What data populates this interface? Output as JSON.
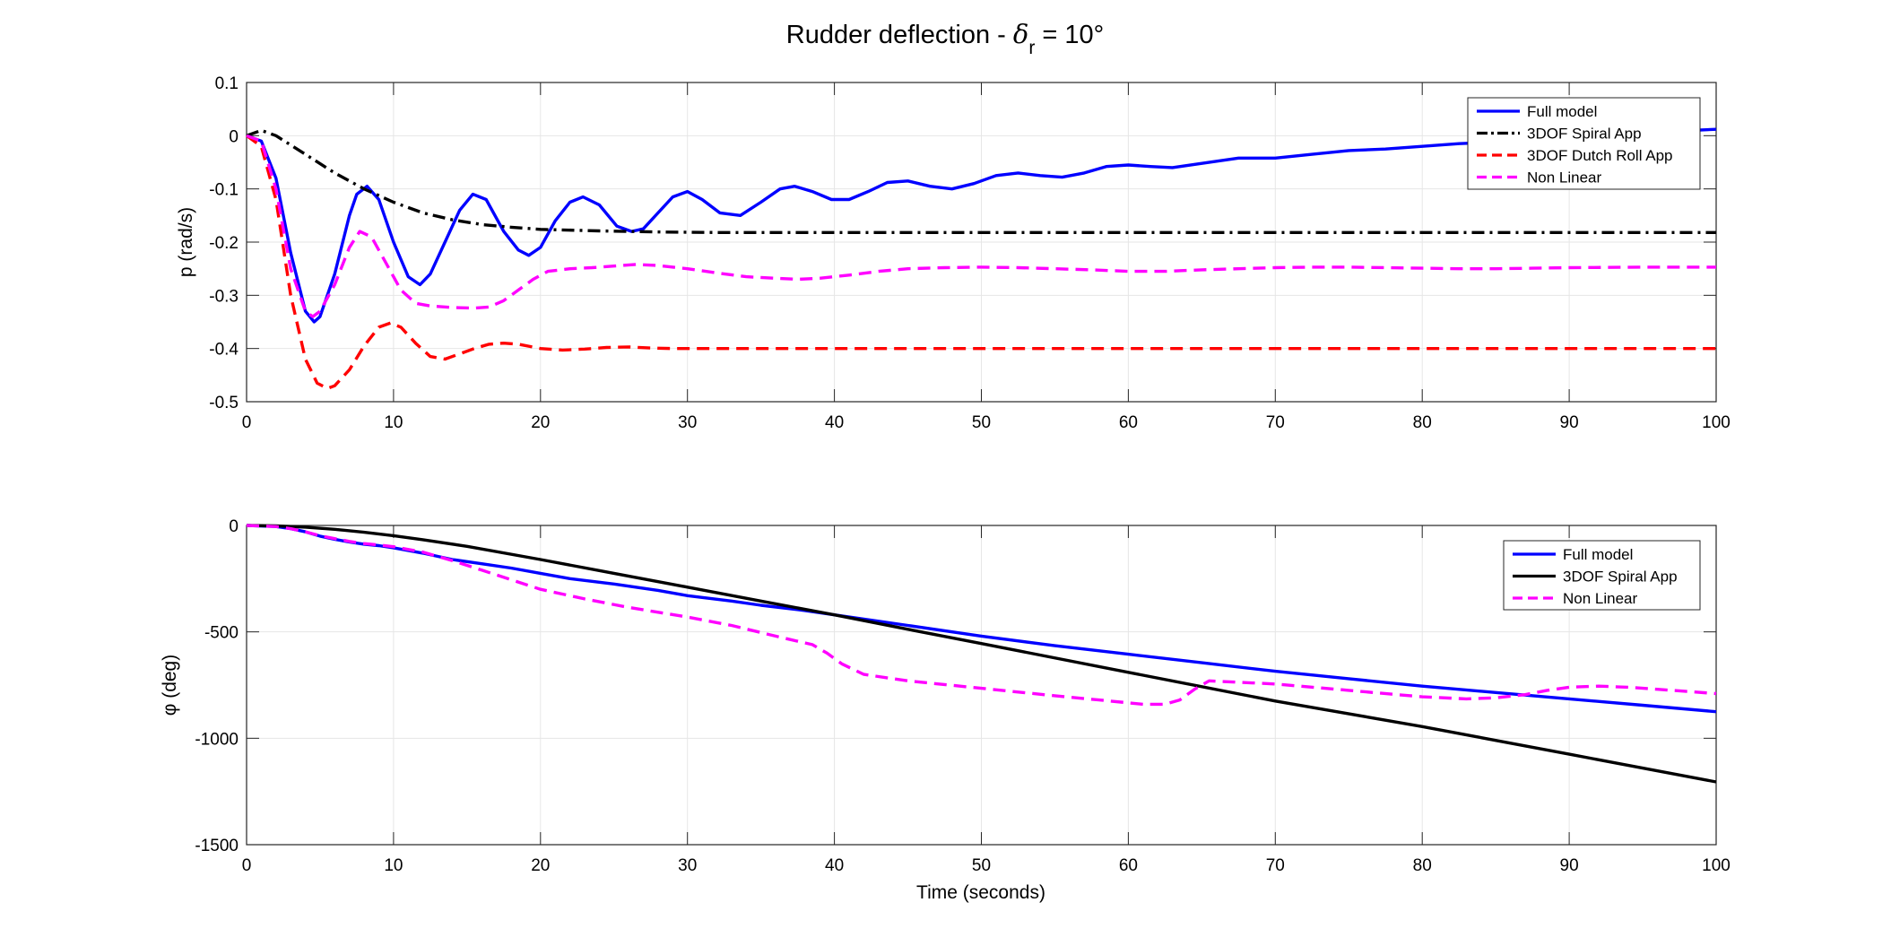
{
  "figure": {
    "title_main": "Rudder deflection - ",
    "title_delta": "δ",
    "title_sub": "r",
    "title_rest": " = 10°",
    "xlabel": "Time (seconds)"
  },
  "colors": {
    "full_model": "#0000ff",
    "spiral": "#000000",
    "dutch_roll": "#ff0000",
    "non_linear": "#ff00ff",
    "grid": "#e6e6e6",
    "axis": "#262626"
  },
  "chart_data": [
    {
      "type": "line",
      "ylabel": "p (rad/s)",
      "xlim": [
        0,
        100
      ],
      "ylim": [
        -0.5,
        0.1
      ],
      "xticks": [
        0,
        10,
        20,
        30,
        40,
        50,
        60,
        70,
        80,
        90,
        100
      ],
      "yticks": [
        0.1,
        0,
        -0.1,
        -0.2,
        -0.3,
        -0.4,
        -0.5
      ],
      "ytick_labels": [
        "0.1",
        "0",
        "-0.1",
        "-0.2",
        "-0.3",
        "-0.4",
        "-0.5"
      ],
      "grid": true,
      "legend": "top-right",
      "series": [
        {
          "name": "Full model",
          "color": "#0000ff",
          "dash": "solid",
          "x": [
            0,
            1,
            2,
            3,
            4,
            4.6,
            5,
            6,
            7,
            7.5,
            8.2,
            9,
            10,
            11,
            11.8,
            12.5,
            13.5,
            14.5,
            15.4,
            16.3,
            17.5,
            18.5,
            19.2,
            20,
            21,
            22,
            22.9,
            24,
            25.2,
            26.2,
            27,
            28,
            29,
            30,
            31,
            32.2,
            33.6,
            35,
            36.3,
            37.3,
            38.5,
            39.8,
            41,
            42.3,
            43.6,
            45,
            46.5,
            48,
            49.5,
            51,
            52.5,
            54,
            55.5,
            57,
            58.5,
            60,
            61.5,
            63,
            65,
            67.5,
            70,
            72.5,
            75,
            77.5,
            80,
            82.5,
            85,
            87.5,
            90,
            92.5,
            95,
            97.5,
            100
          ],
          "y": [
            0,
            -0.01,
            -0.08,
            -0.22,
            -0.33,
            -0.35,
            -0.34,
            -0.26,
            -0.15,
            -0.11,
            -0.095,
            -0.12,
            -0.2,
            -0.265,
            -0.28,
            -0.26,
            -0.2,
            -0.14,
            -0.11,
            -0.12,
            -0.18,
            -0.215,
            -0.225,
            -0.21,
            -0.16,
            -0.125,
            -0.115,
            -0.13,
            -0.17,
            -0.18,
            -0.175,
            -0.145,
            -0.115,
            -0.105,
            -0.12,
            -0.145,
            -0.15,
            -0.125,
            -0.1,
            -0.095,
            -0.105,
            -0.12,
            -0.12,
            -0.105,
            -0.088,
            -0.085,
            -0.095,
            -0.1,
            -0.09,
            -0.075,
            -0.07,
            -0.075,
            -0.078,
            -0.07,
            -0.058,
            -0.055,
            -0.058,
            -0.06,
            -0.052,
            -0.042,
            -0.042,
            -0.035,
            -0.028,
            -0.025,
            -0.02,
            -0.015,
            -0.012,
            -0.01,
            -0.006,
            -0.002,
            0.004,
            0.009,
            0.012
          ]
        },
        {
          "name": "3DOF Spiral App",
          "color": "#000000",
          "dash": "dashdot",
          "x": [
            0,
            1,
            2,
            4,
            6,
            8,
            10,
            12,
            14,
            16,
            18,
            20,
            24,
            28,
            32,
            40,
            50,
            60,
            70,
            80,
            90,
            100
          ],
          "y": [
            0,
            0.01,
            0.0,
            -0.035,
            -0.07,
            -0.1,
            -0.125,
            -0.145,
            -0.158,
            -0.167,
            -0.172,
            -0.176,
            -0.179,
            -0.181,
            -0.182,
            -0.182,
            -0.182,
            -0.182,
            -0.182,
            -0.182,
            -0.182,
            -0.182
          ]
        },
        {
          "name": "3DOF Dutch Roll App",
          "color": "#ff0000",
          "dash": "dashed",
          "x": [
            0,
            1,
            2,
            3,
            4,
            4.8,
            5.5,
            6,
            7,
            8,
            9,
            9.8,
            10.5,
            11.5,
            12.5,
            13.5,
            14.5,
            15.5,
            16.5,
            17.5,
            18.5,
            20,
            21.5,
            23,
            24.5,
            26,
            27.5,
            29,
            31,
            35,
            40,
            50,
            60,
            70,
            80,
            90,
            100
          ],
          "y": [
            0,
            -0.02,
            -0.12,
            -0.3,
            -0.42,
            -0.465,
            -0.475,
            -0.47,
            -0.44,
            -0.395,
            -0.36,
            -0.352,
            -0.36,
            -0.39,
            -0.415,
            -0.42,
            -0.41,
            -0.4,
            -0.392,
            -0.39,
            -0.392,
            -0.4,
            -0.403,
            -0.401,
            -0.398,
            -0.397,
            -0.399,
            -0.4,
            -0.4,
            -0.4,
            -0.4,
            -0.4,
            -0.4,
            -0.4,
            -0.4,
            -0.4,
            -0.4
          ]
        },
        {
          "name": "Non Linear",
          "color": "#ff00ff",
          "dash": "dashed",
          "x": [
            0,
            1,
            2,
            3,
            4,
            4.5,
            5,
            6,
            7,
            7.7,
            8.5,
            9.5,
            10.5,
            11.5,
            12.5,
            14,
            15.5,
            16.5,
            17.5,
            18.5,
            19.5,
            20.5,
            22,
            23.5,
            25,
            26.5,
            28,
            30,
            32,
            34,
            36,
            37.5,
            39,
            41,
            43,
            45,
            47.5,
            50,
            52.5,
            55,
            57.5,
            60,
            62.5,
            65,
            67.5,
            70,
            72.5,
            75,
            77.5,
            80,
            82.5,
            85,
            87.5,
            90,
            95,
            100
          ],
          "y": [
            0,
            -0.01,
            -0.1,
            -0.25,
            -0.33,
            -0.34,
            -0.33,
            -0.28,
            -0.21,
            -0.18,
            -0.19,
            -0.24,
            -0.29,
            -0.315,
            -0.32,
            -0.323,
            -0.324,
            -0.322,
            -0.31,
            -0.29,
            -0.27,
            -0.255,
            -0.25,
            -0.248,
            -0.245,
            -0.242,
            -0.244,
            -0.25,
            -0.258,
            -0.265,
            -0.268,
            -0.27,
            -0.268,
            -0.262,
            -0.255,
            -0.25,
            -0.248,
            -0.247,
            -0.248,
            -0.25,
            -0.252,
            -0.255,
            -0.255,
            -0.252,
            -0.25,
            -0.248,
            -0.247,
            -0.247,
            -0.248,
            -0.249,
            -0.25,
            -0.25,
            -0.249,
            -0.248,
            -0.247,
            -0.247
          ]
        }
      ]
    },
    {
      "type": "line",
      "ylabel": "φ (deg)",
      "xlim": [
        0,
        100
      ],
      "ylim": [
        -1500,
        0
      ],
      "xticks": [
        0,
        10,
        20,
        30,
        40,
        50,
        60,
        70,
        80,
        90,
        100
      ],
      "yticks": [
        0,
        -500,
        -1000,
        -1500
      ],
      "ytick_labels": [
        "0",
        "-500",
        "-1000",
        "-1500"
      ],
      "grid": true,
      "legend": "top-right",
      "series": [
        {
          "name": "Full model",
          "color": "#0000ff",
          "dash": "solid",
          "x": [
            0,
            2,
            3,
            4,
            5,
            6,
            7,
            8,
            9,
            10,
            12,
            14,
            16,
            18,
            20,
            22,
            25,
            28,
            30,
            33,
            35,
            38,
            40,
            45,
            50,
            55,
            60,
            65,
            70,
            75,
            80,
            85,
            90,
            95,
            100
          ],
          "y": [
            0,
            -5,
            -15,
            -30,
            -50,
            -65,
            -78,
            -88,
            -95,
            -105,
            -130,
            -160,
            -180,
            -200,
            -225,
            -250,
            -275,
            -305,
            -330,
            -355,
            -375,
            -400,
            -420,
            -470,
            -520,
            -565,
            -605,
            -645,
            -685,
            -720,
            -755,
            -785,
            -815,
            -845,
            -875
          ]
        },
        {
          "name": "3DOF Spiral App",
          "color": "#000000",
          "dash": "solid",
          "x": [
            0,
            2,
            4,
            6,
            8,
            10,
            12,
            15,
            20,
            25,
            30,
            35,
            40,
            45,
            50,
            60,
            70,
            80,
            90,
            100
          ],
          "y": [
            0,
            -2,
            -8,
            -18,
            -32,
            -48,
            -67,
            -98,
            -160,
            -225,
            -290,
            -355,
            -420,
            -488,
            -555,
            -690,
            -825,
            -945,
            -1075,
            -1205
          ]
        },
        {
          "name": "Non Linear",
          "color": "#ff00ff",
          "dash": "dashed",
          "x": [
            0,
            2,
            3,
            4,
            5,
            6,
            7,
            8,
            9,
            10,
            12,
            14,
            16,
            18,
            20,
            23,
            26,
            30,
            33,
            36,
            38.5,
            39.5,
            40.5,
            42,
            45,
            50,
            55,
            58,
            61,
            62.5,
            63.5,
            64.5,
            65.5,
            70,
            75,
            80,
            83,
            85,
            87,
            88.5,
            90,
            92,
            94,
            96,
            98,
            100
          ],
          "y": [
            0,
            -5,
            -15,
            -30,
            -48,
            -62,
            -75,
            -85,
            -92,
            -100,
            -125,
            -165,
            -210,
            -255,
            -300,
            -345,
            -385,
            -430,
            -470,
            -520,
            -560,
            -600,
            -650,
            -700,
            -730,
            -765,
            -800,
            -820,
            -840,
            -840,
            -820,
            -770,
            -730,
            -745,
            -775,
            -805,
            -815,
            -810,
            -795,
            -775,
            -760,
            -755,
            -760,
            -770,
            -780,
            -790
          ]
        }
      ]
    }
  ]
}
